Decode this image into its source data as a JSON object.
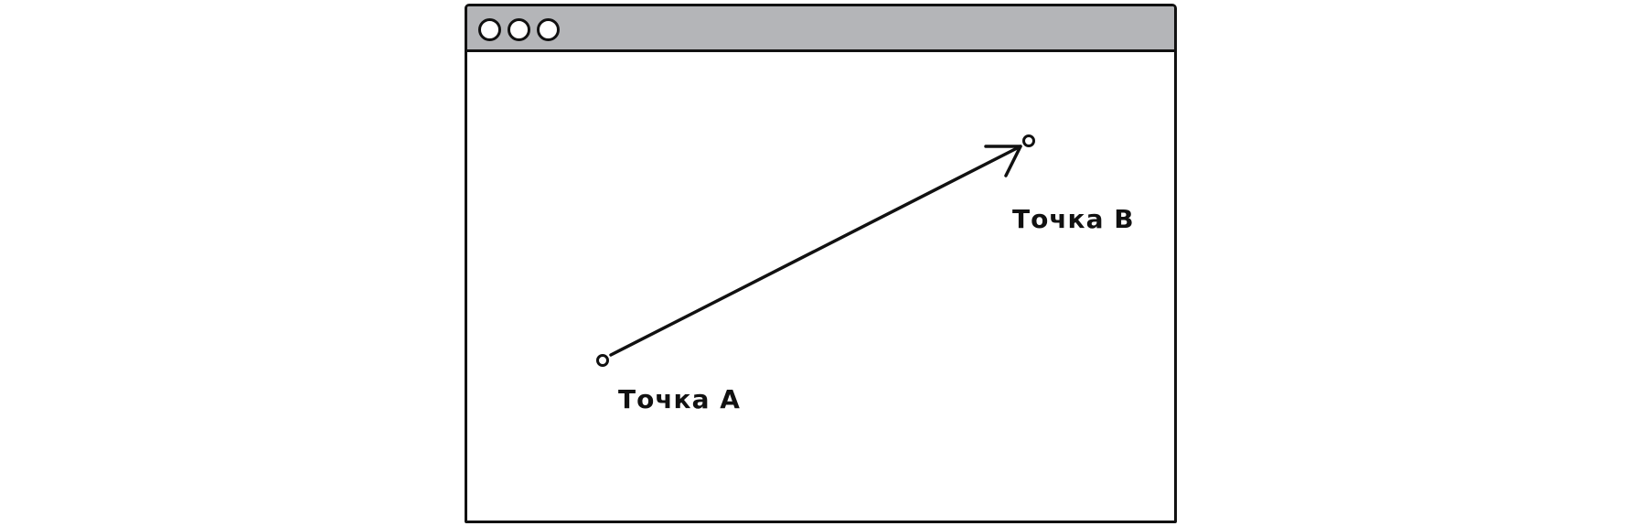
{
  "diagram": {
    "point_a": {
      "label": "Точка A"
    },
    "point_b": {
      "label": "Точка B"
    },
    "colors": {
      "ink": "#111111",
      "title_bar": "#b4b5b8",
      "background": "#ffffff"
    }
  }
}
